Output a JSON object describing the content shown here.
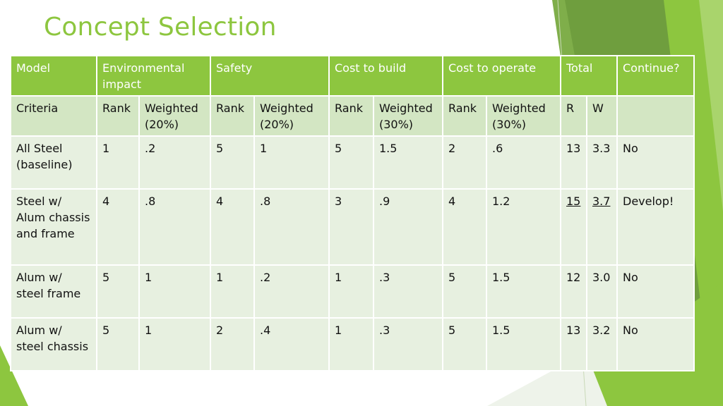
{
  "slide": {
    "title": "Concept Selection"
  },
  "colors": {
    "accent": "#8dc63f",
    "header_fill": "#8dc63f",
    "subheader_fill": "#d3e6c3",
    "row_fill": "#e7f0e0"
  },
  "table": {
    "header": [
      "Model",
      "Environmental impact",
      "Safety",
      "Cost to build",
      "Cost to operate",
      "Total",
      "Continue?"
    ],
    "criteria": [
      "Criteria",
      "Rank",
      "Weighted (20%)",
      "Rank",
      "Weighted (20%)",
      "Rank",
      "Weighted (30%)",
      "Rank",
      "Weighted (30%)",
      "R",
      "W",
      ""
    ],
    "rows": [
      [
        "All Steel (baseline)",
        "1",
        ".2",
        "5",
        "1",
        "5",
        "1.5",
        "2",
        ".6",
        "13",
        "3.3",
        "No"
      ],
      [
        "Steel w/ Alum chassis and frame",
        "4",
        ".8",
        "4",
        ".8",
        "3",
        ".9",
        "4",
        "1.2",
        "15",
        "3.7",
        "Develop!"
      ],
      [
        "Alum w/ steel frame",
        "5",
        "1",
        "1",
        ".2",
        "1",
        ".3",
        "5",
        "1.5",
        "12",
        "3.0",
        "No"
      ],
      [
        "Alum w/ steel chassis",
        "5",
        "1",
        "2",
        ".4",
        "1",
        ".3",
        "5",
        "1.5",
        "13",
        "3.2",
        "No"
      ]
    ]
  }
}
